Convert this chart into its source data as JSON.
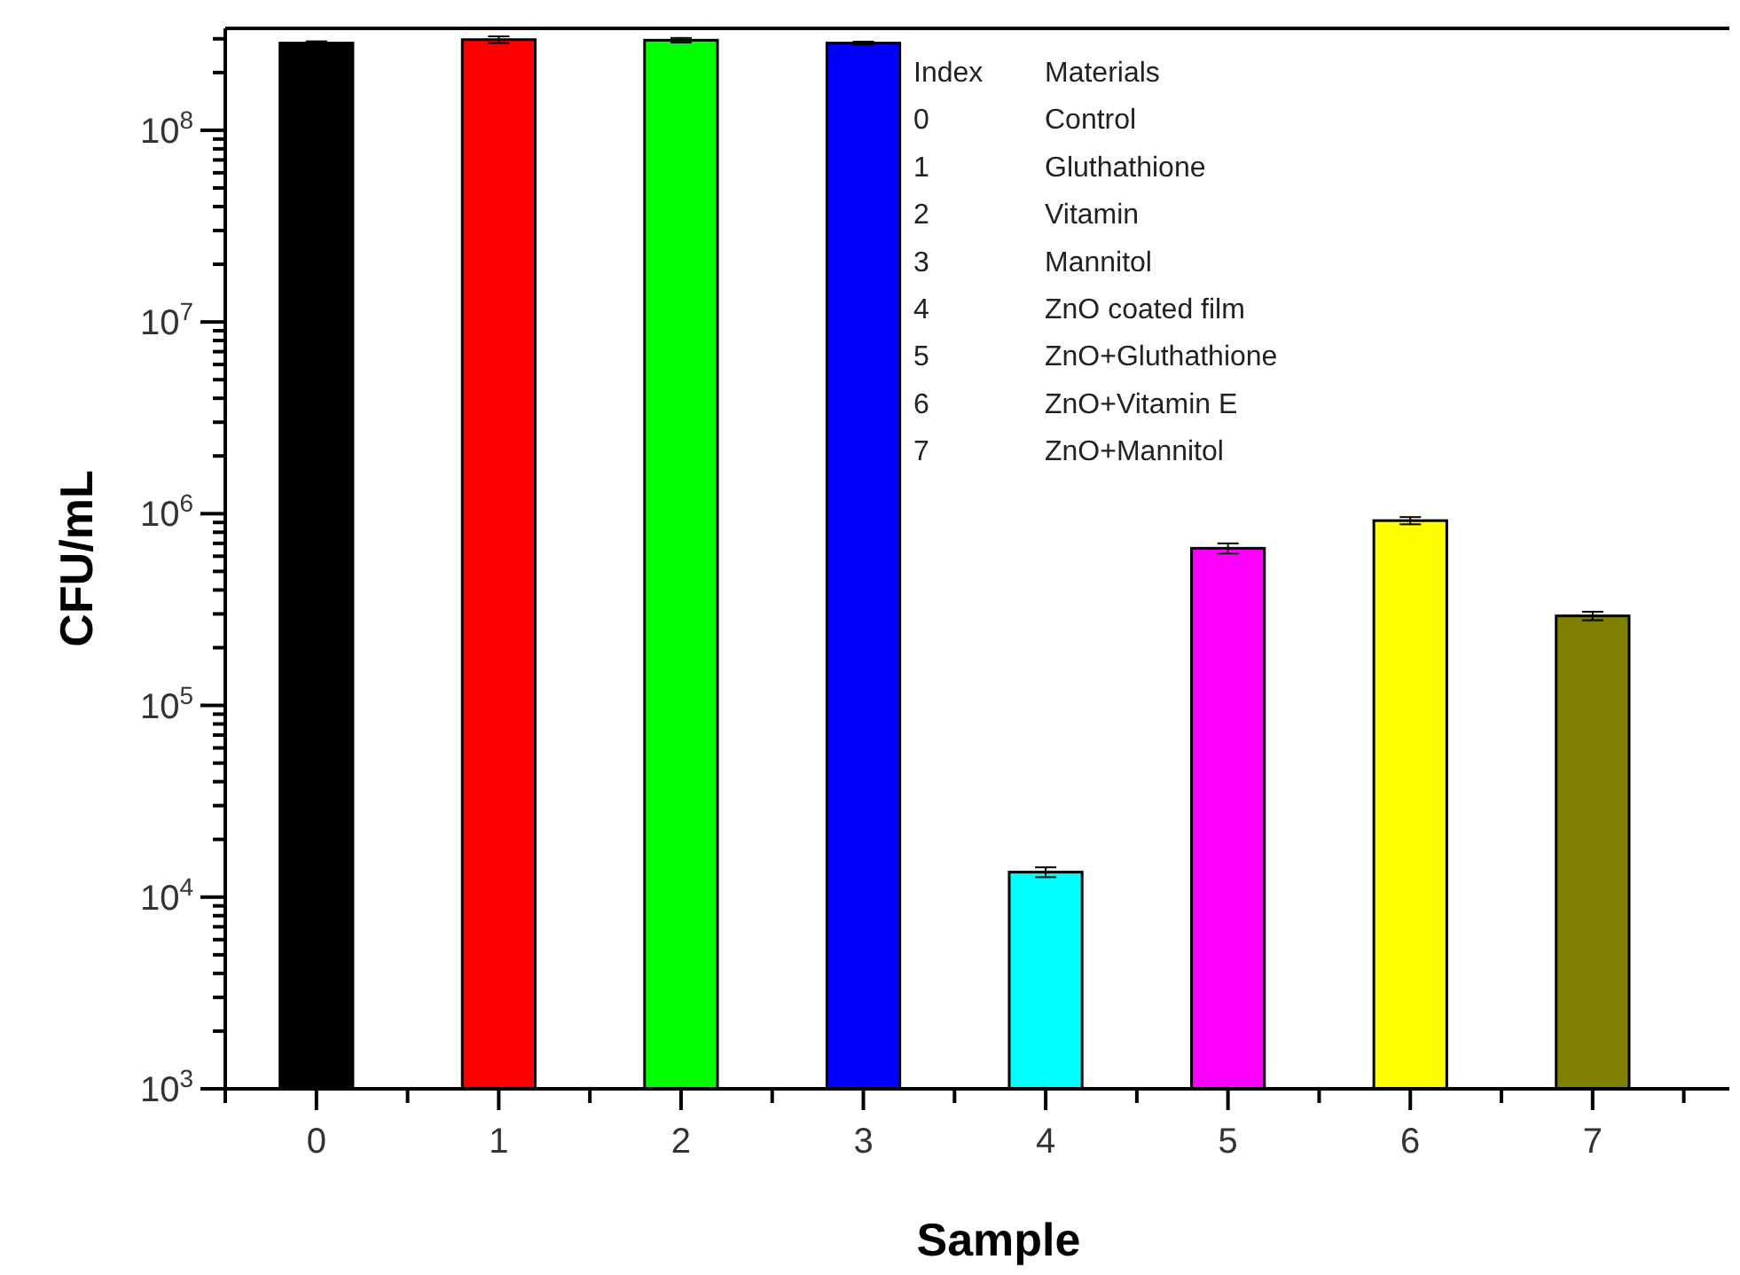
{
  "chart_data": {
    "type": "bar",
    "xlabel": "Sample",
    "ylabel": "CFU/mL",
    "x": [
      0,
      1,
      2,
      3,
      4,
      5,
      6,
      7
    ],
    "values": [
      285000000,
      297000000,
      295000000,
      285000000,
      13500.0,
      660000,
      920000,
      293000
    ],
    "errors": [
      6000000,
      12000000,
      8000000,
      5000000,
      800,
      40000,
      40000,
      15000
    ],
    "colors": [
      "#000000",
      "#ff0000",
      "#00ff00",
      "#0000ff",
      "#00ffff",
      "#ff00ff",
      "#ffff00",
      "#808000"
    ],
    "log": "y",
    "xlim": [
      -0.5,
      7.75
    ],
    "xticks": [
      0,
      1,
      2,
      3,
      4,
      5,
      6,
      7,
      {
        "value": -0.5,
        "label": null
      },
      {
        "value": 0.5,
        "label": null
      },
      {
        "value": 1.5,
        "label": null
      },
      {
        "value": 2.5,
        "label": null
      },
      {
        "value": 3.5,
        "label": null
      },
      {
        "value": 4.5,
        "label": null
      },
      {
        "value": 5.5,
        "label": null
      },
      {
        "value": 6.5,
        "label": null
      },
      {
        "value": 7.5,
        "label": null
      }
    ],
    "ylim": [
      1000,
      340000000
    ],
    "yticks": [
      {
        "value": 1000,
        "label": "10$^{3}$"
      },
      {
        "value": 10000,
        "label": "10$^{4}$"
      },
      {
        "value": 100000,
        "label": "10$^{5}$"
      },
      {
        "value": 1000000,
        "label": "10$^{6}$"
      },
      {
        "value": 10000000,
        "label": "10$^{7}$"
      },
      {
        "value": 100000000,
        "label": "10$^{8}$"
      },
      {
        "value": 2000,
        "label": null
      },
      {
        "value": 3000,
        "label": null
      },
      {
        "value": 4000,
        "label": null
      },
      {
        "value": 5000,
        "label": null
      },
      {
        "value": 6000,
        "label": null
      },
      {
        "value": 7000,
        "label": null
      },
      {
        "value": 8000,
        "label": null
      },
      {
        "value": 9000,
        "label": null
      },
      {
        "value": 20000,
        "label": null
      },
      {
        "value": 30000,
        "label": null
      },
      {
        "value": 40000,
        "label": null
      },
      {
        "value": 50000,
        "label": null
      },
      {
        "value": 60000,
        "label": null
      },
      {
        "value": 70000,
        "label": null
      },
      {
        "value": 80000,
        "label": null
      },
      {
        "value": 90000,
        "label": null
      },
      {
        "value": 200000,
        "label": null
      },
      {
        "value": 300000,
        "label": null
      },
      {
        "value": 400000,
        "label": null
      },
      {
        "value": 500000,
        "label": null
      },
      {
        "value": 600000,
        "label": null
      },
      {
        "value": 700000,
        "label": null
      },
      {
        "value": 800000,
        "label": null
      },
      {
        "value": 900000,
        "label": null
      },
      {
        "value": 2000000,
        "label": null
      },
      {
        "value": 3000000,
        "label": null
      },
      {
        "value": 4000000,
        "label": null
      },
      {
        "value": 5000000,
        "label": null
      },
      {
        "value": 6000000,
        "label": null
      },
      {
        "value": 7000000,
        "label": null
      },
      {
        "value": 8000000,
        "label": null
      },
      {
        "value": 9000000,
        "label": null
      },
      {
        "value": 20000000,
        "label": null
      },
      {
        "value": 30000000,
        "label": null
      },
      {
        "value": 40000000,
        "label": null
      },
      {
        "value": 50000000,
        "label": null
      },
      {
        "value": 60000000,
        "label": null
      },
      {
        "value": 70000000,
        "label": null
      },
      {
        "value": 80000000,
        "label": null
      },
      {
        "value": 90000000,
        "label": null
      },
      {
        "value": 200000000,
        "label": null
      },
      {
        "value": 300000000,
        "label": null
      }
    ],
    "grid": false,
    "annotations": [
      "Index",
      "Materials",
      "0",
      "Control",
      "1",
      "Gluthathione",
      "2",
      "Vitamin",
      "3",
      "Mannitol",
      "4",
      "ZnO coated film",
      "5",
      "ZnO+Gluthathione",
      "6",
      "ZnO+Vitamin E",
      "7",
      "ZnO+Mannitol"
    ]
  }
}
